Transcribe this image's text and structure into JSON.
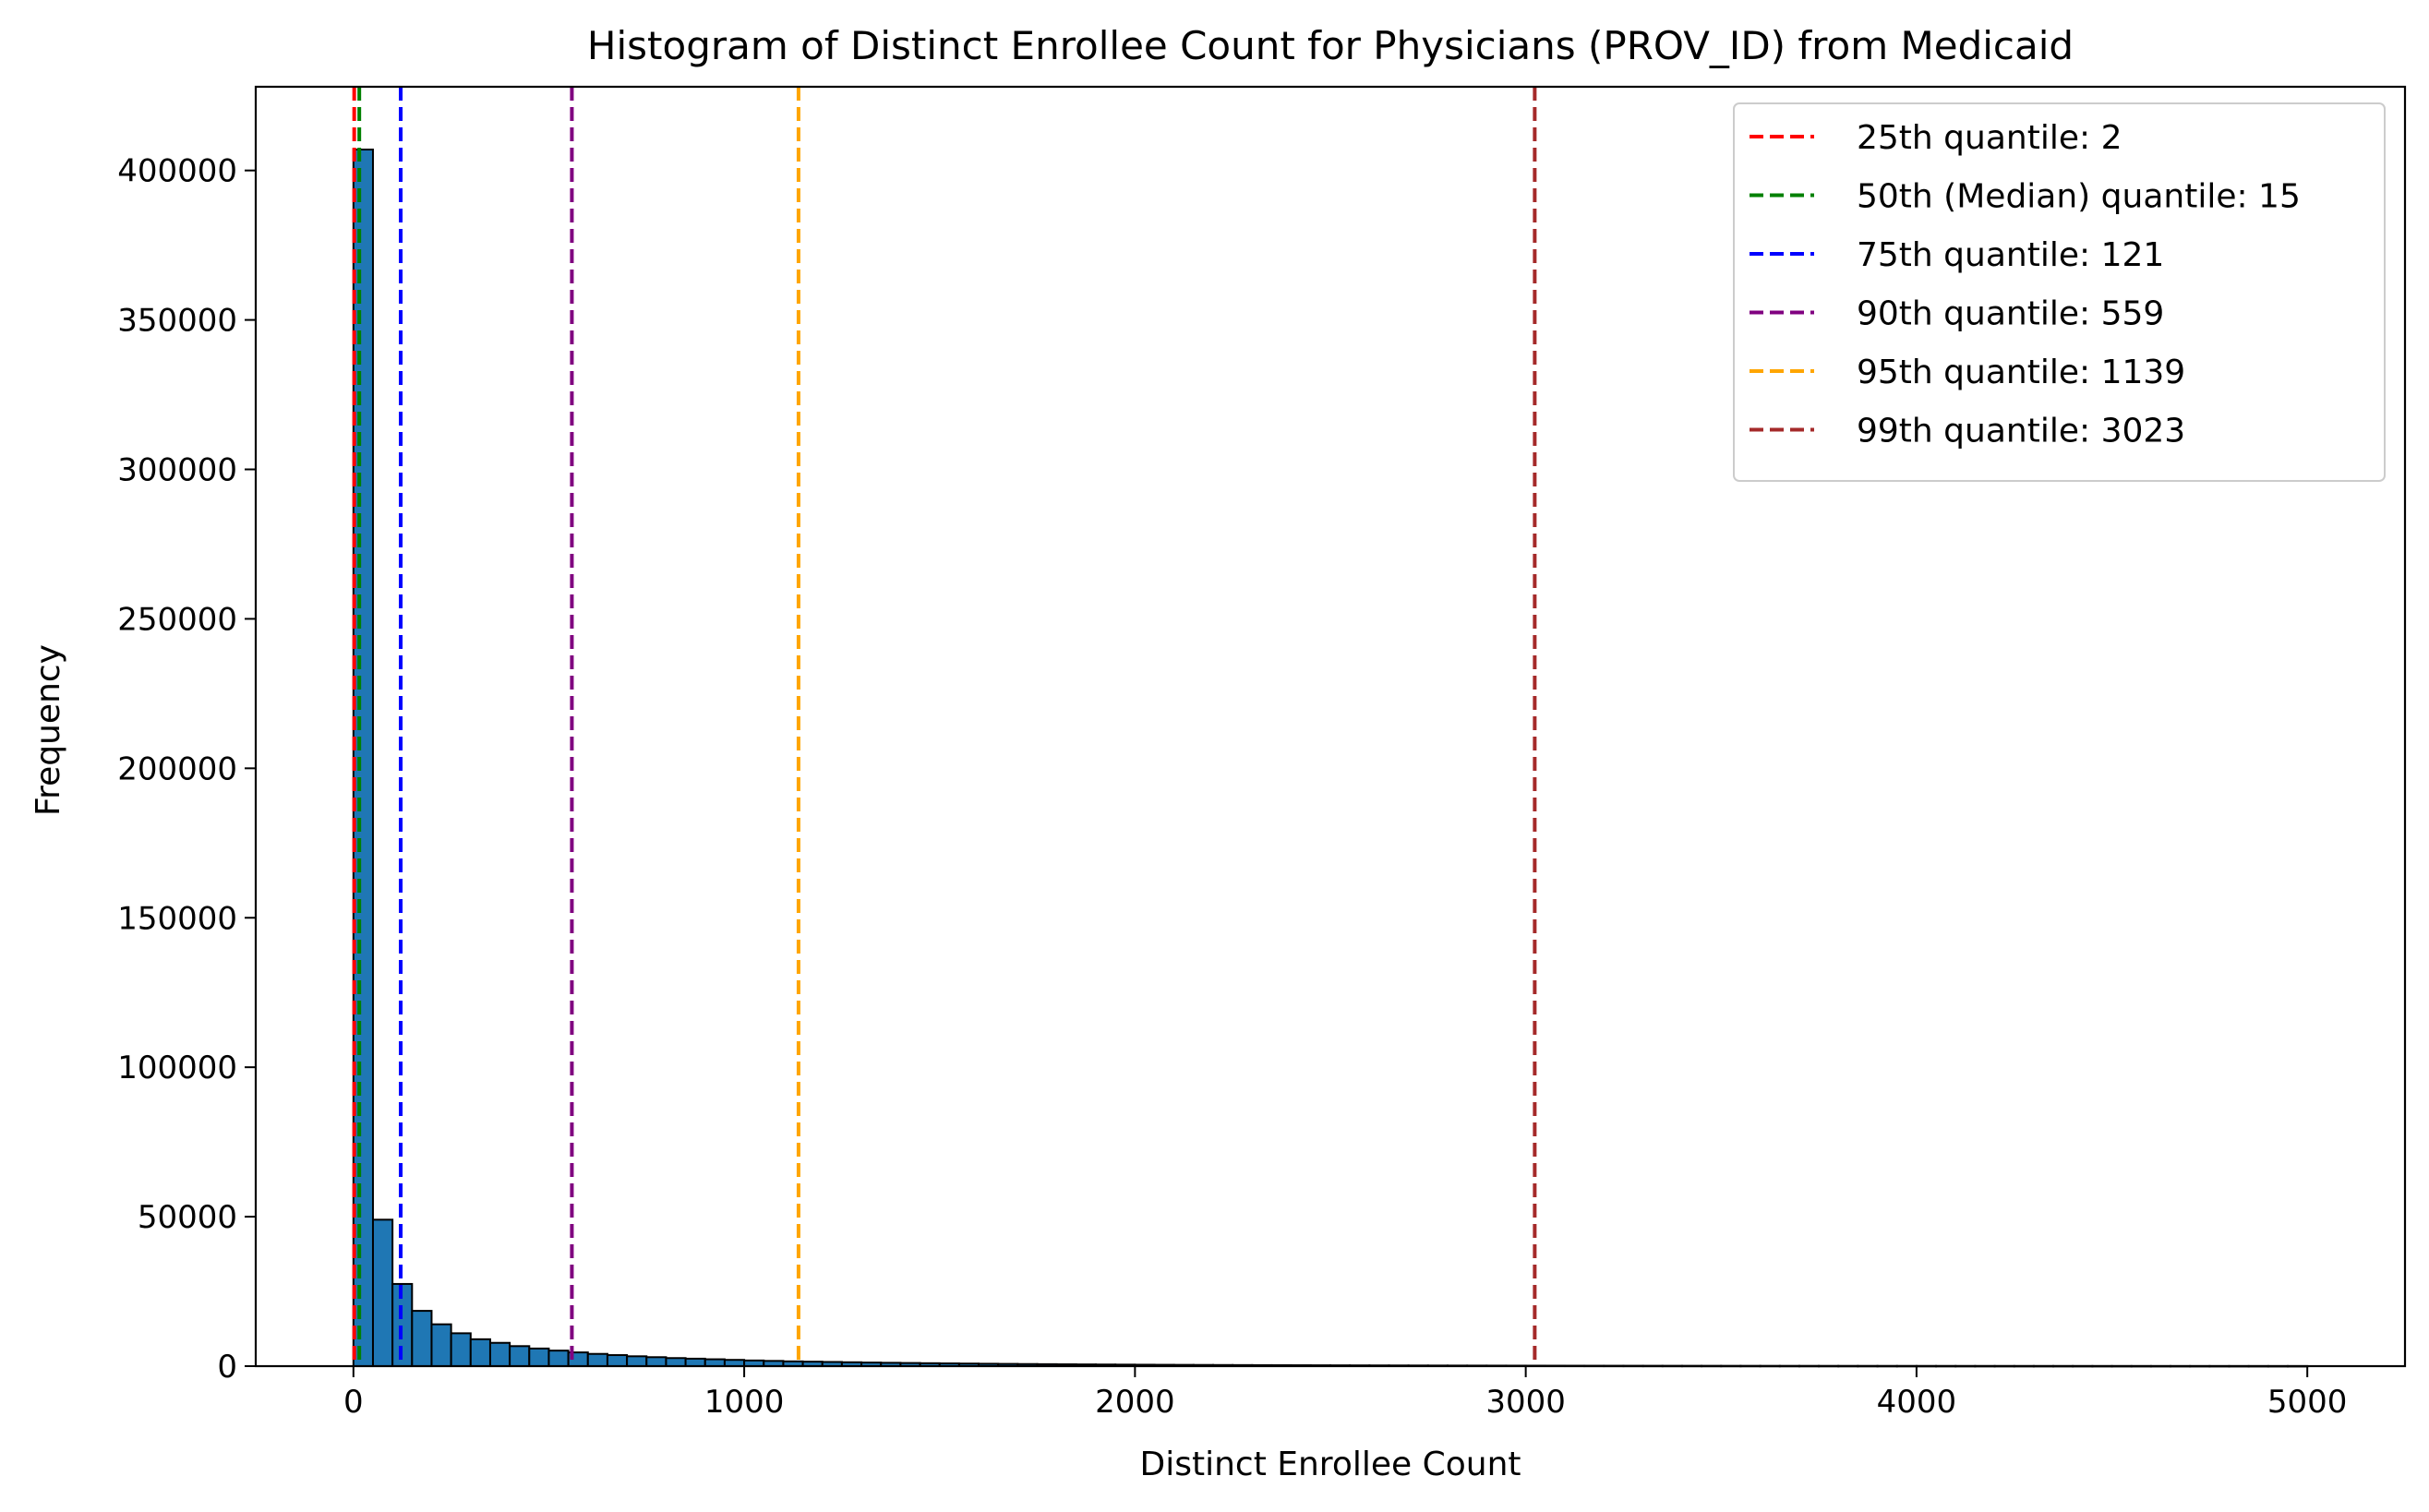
{
  "chart_data": {
    "type": "bar",
    "title": "Histogram of Distinct Enrollee Count for Physicians (PROV_ID) from Medicaid",
    "xlabel": "Distinct Enrollee Count",
    "ylabel": "Frequency",
    "xlim": [
      -250,
      5250
    ],
    "ylim": [
      0,
      428000
    ],
    "xticks": [
      0,
      1000,
      2000,
      3000,
      4000,
      5000
    ],
    "yticks": [
      0,
      50000,
      100000,
      150000,
      200000,
      250000,
      300000,
      350000,
      400000
    ],
    "bin_width": 50,
    "bin_start": 0,
    "bar_color": "#1f77b4",
    "bar_edge_color": "#000000",
    "values": [
      407000,
      49000,
      27500,
      18500,
      14000,
      11000,
      9000,
      7800,
      6700,
      5900,
      5200,
      4600,
      4100,
      3700,
      3300,
      3000,
      2700,
      2500,
      2300,
      2100,
      1900,
      1750,
      1600,
      1500,
      1400,
      1300,
      1200,
      1120,
      1050,
      980,
      920,
      860,
      800,
      750,
      700,
      660,
      620,
      580,
      545,
      510,
      480,
      450,
      425,
      400,
      378,
      356,
      336,
      318,
      300,
      284,
      268,
      254,
      240,
      228,
      216,
      205,
      195,
      185,
      176,
      168,
      160,
      152,
      145,
      138,
      132,
      126,
      120,
      114,
      109,
      104,
      99,
      95,
      91,
      87,
      83,
      79,
      76,
      73,
      70,
      67,
      64,
      61,
      59,
      57,
      55,
      53,
      51,
      49,
      47,
      45,
      43,
      41,
      39,
      38,
      37,
      36,
      35,
      34,
      33,
      32
    ],
    "quantile_lines": [
      {
        "label": "25th quantile: 2",
        "value": 2,
        "color": "#ff0000"
      },
      {
        "label": "50th (Median) quantile: 15",
        "value": 15,
        "color": "#008000"
      },
      {
        "label": "75th quantile: 121",
        "value": 121,
        "color": "#0000ff"
      },
      {
        "label": "90th quantile: 559",
        "value": 559,
        "color": "#800080"
      },
      {
        "label": "95th quantile: 1139",
        "value": 1139,
        "color": "#ffa500"
      },
      {
        "label": "99th quantile: 3023",
        "value": 3023,
        "color": "#a52a2a"
      }
    ],
    "grid": false,
    "legend_position": "top-right"
  }
}
